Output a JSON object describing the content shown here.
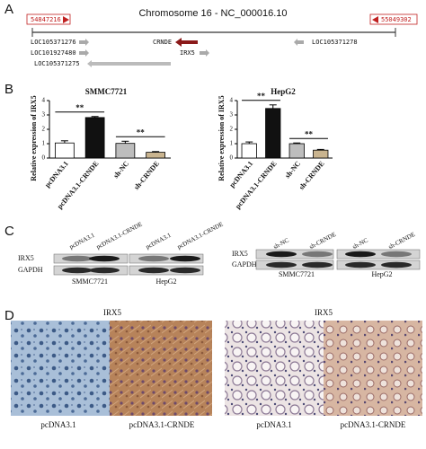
{
  "panel_labels": [
    "A",
    "B",
    "C",
    "D"
  ],
  "panel_a": {
    "start": "54847216",
    "title": "Chromosome 16 - NC_000016.10",
    "end": "55049302",
    "genes": [
      "LOC105371276",
      "CRNDE",
      "LOC105371278",
      "LOC101927480",
      "IRX5",
      "LOC105371275"
    ]
  },
  "chart_data": [
    {
      "type": "bar",
      "title": "SMMC7721",
      "ylabel": "Relative expression of IRX5",
      "categories": [
        "pcDNA3.1",
        "pcDNA3.1-CRNDE",
        "sh-NC",
        "sh-CRNDE"
      ],
      "values": [
        1.05,
        2.82,
        1.02,
        0.4
      ],
      "errors": [
        0.15,
        0.07,
        0.15,
        0.05
      ],
      "colors": [
        "#ffffff",
        "#111111",
        "#bdbdbd",
        "#c9b48f"
      ],
      "ylim": [
        0,
        4
      ],
      "yticks": [
        0,
        1,
        2,
        3,
        4
      ],
      "annotations": [
        "**",
        "**"
      ]
    },
    {
      "type": "bar",
      "title": "HepG2",
      "ylabel": "Relative expression of IRX5",
      "categories": [
        "pcDNA3.1",
        "pcDNA3.1-CRNDE",
        "sh-NC",
        "sh-CRNDE"
      ],
      "values": [
        1.0,
        3.45,
        1.0,
        0.55
      ],
      "errors": [
        0.12,
        0.25,
        0.05,
        0.05
      ],
      "colors": [
        "#ffffff",
        "#111111",
        "#bdbdbd",
        "#c9b48f"
      ],
      "ylim": [
        0,
        4
      ],
      "yticks": [
        0,
        1,
        2,
        3,
        4
      ],
      "annotations": [
        "**",
        "**"
      ]
    }
  ],
  "panel_c": {
    "left": {
      "lanes": [
        "pcDNA3.1",
        "pcDNA3.1-CRNDE",
        "pcDNA3.1",
        "pcDNA3.1-CRNDE"
      ],
      "rows": [
        "IRX5",
        "GAPDH"
      ],
      "cells": [
        "SMMC7721",
        "HepG2"
      ]
    },
    "right": {
      "lanes": [
        "sh-NC",
        "sh-CRNDE",
        "sh-NC",
        "sh-CRNDE"
      ],
      "rows": [
        "IRX5",
        "GAPDH"
      ],
      "cells": [
        "SMMC7721",
        "HepG2"
      ]
    }
  },
  "panel_d": {
    "stains": [
      "IRX5",
      "IRX5"
    ],
    "captions": [
      "pcDNA3.1",
      "pcDNA3.1-CRNDE",
      "pcDNA3.1",
      "pcDNA3.1-CRNDE"
    ]
  }
}
